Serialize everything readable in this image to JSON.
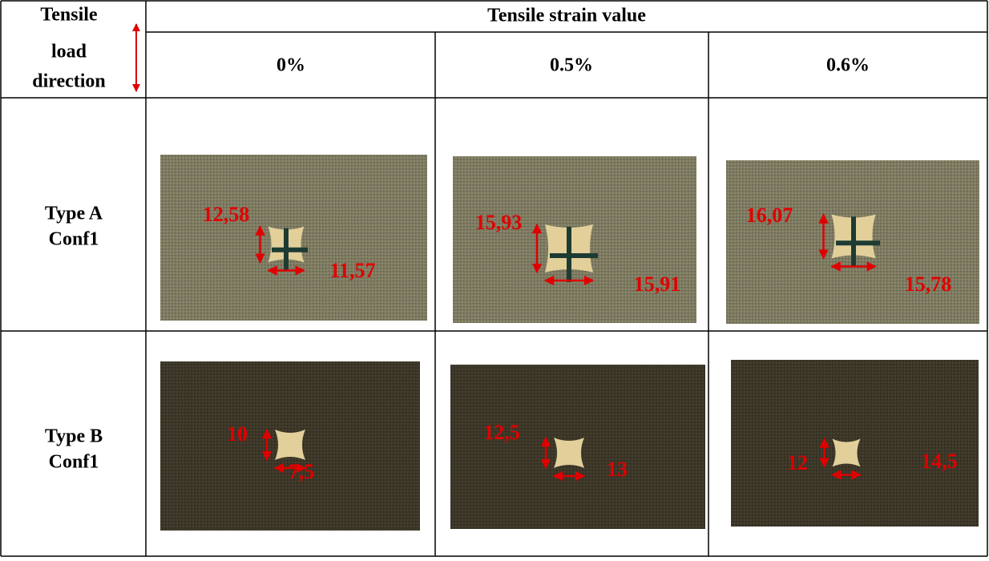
{
  "table": {
    "corner_lines": [
      "Tensile",
      "load",
      "direction"
    ],
    "header": "Tensile strain value",
    "columns": [
      "0%",
      "0.5%",
      "0.6%"
    ],
    "rows": [
      {
        "label_lines": [
          "Type A",
          "Conf1"
        ],
        "cells": [
          {
            "height": "12,58",
            "width": "11,57"
          },
          {
            "height": "15,93",
            "width": "15,91"
          },
          {
            "height": "16,07",
            "width": "15,78"
          }
        ]
      },
      {
        "label_lines": [
          "Type B",
          "Conf1"
        ],
        "cells": [
          {
            "height": "10",
            "width": "7,5"
          },
          {
            "height": "12,5",
            "width": "13"
          },
          {
            "height": "12",
            "width": "14,5"
          }
        ]
      }
    ]
  }
}
